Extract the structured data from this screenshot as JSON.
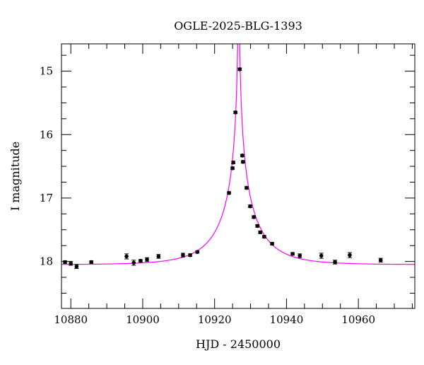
{
  "chart_data": {
    "type": "scatter",
    "title": "OGLE-2025-BLG-1393",
    "xlabel": "HJD - 2450000",
    "ylabel": "I magnitude",
    "xlim": [
      10877.4,
      10975.7
    ],
    "ylim": [
      18.74,
      14.57
    ],
    "y_inverted": true,
    "xticks": [
      10880,
      10900,
      10920,
      10940,
      10960
    ],
    "xtick_labels": [
      "10880",
      "10900",
      "10920",
      "10940",
      "10960"
    ],
    "yticks": [
      15,
      16,
      17,
      18
    ],
    "ytick_labels": [
      "15",
      "16",
      "17",
      "18"
    ],
    "grid": false,
    "colors": {
      "points": "#000000",
      "model": "#ff00ff"
    },
    "series": [
      {
        "kind": "points",
        "x": [
          10878.4,
          10880.0,
          10881.6,
          10885.7,
          10895.5,
          10897.5,
          10899.4,
          10901.2,
          10904.4,
          10911.2,
          10913.2,
          10915.2,
          10924.0,
          10925.0,
          10925.2,
          10925.8,
          10927.0,
          10927.7,
          10927.9,
          10928.9,
          10929.9,
          10930.9,
          10931.9,
          10932.7,
          10933.8,
          10936.0,
          10941.7,
          10943.7,
          10949.7,
          10953.5,
          10957.6,
          10966.2
        ],
        "y": [
          18.01,
          18.03,
          18.08,
          18.01,
          17.92,
          18.02,
          17.99,
          17.97,
          17.92,
          17.9,
          17.9,
          17.85,
          16.92,
          16.53,
          16.44,
          15.65,
          14.97,
          16.33,
          16.43,
          16.84,
          17.13,
          17.3,
          17.44,
          17.54,
          17.61,
          17.72,
          17.88,
          17.91,
          17.91,
          18.01,
          17.9,
          17.98
        ],
        "yerr": [
          0.02,
          0.03,
          0.03,
          0.02,
          0.04,
          0.04,
          0.02,
          0.03,
          0.03,
          0.03,
          0.02,
          0.02,
          0.02,
          0.02,
          0.02,
          0.02,
          0.02,
          0.02,
          0.02,
          0.02,
          0.02,
          0.02,
          0.02,
          0.02,
          0.02,
          0.02,
          0.02,
          0.03,
          0.04,
          0.03,
          0.04,
          0.03
        ]
      },
      {
        "kind": "model-curve"
      }
    ]
  }
}
